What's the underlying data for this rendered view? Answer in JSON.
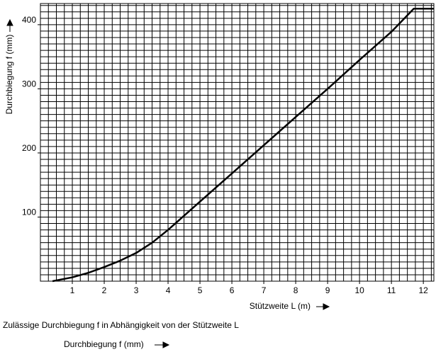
{
  "chart_data": {
    "type": "line",
    "ylabel": "Durchbiegung f (mm)",
    "xlabel": "Stützweite L (m)",
    "caption": "Zulässige Durchbiegung f in Abhängigkeit von der Stützweite L",
    "footer_label": "Durchbiegung f (mm)",
    "x": [
      0.38,
      1,
      1.5,
      2,
      2.5,
      3,
      3.5,
      4,
      5,
      6,
      7,
      8,
      9,
      10,
      11,
      11.7,
      12.33
    ],
    "series": [
      {
        "color": "#000000",
        "values": [
          0,
          6,
          13,
          22,
          32,
          44,
          60,
          80,
          124,
          168,
          212,
          256,
          300,
          345,
          389,
          425,
          425
        ]
      }
    ],
    "xlim": [
      0,
      12.33
    ],
    "ylim": [
      0,
      433
    ],
    "xticks": [
      1,
      2,
      3,
      4,
      5,
      6,
      7,
      8,
      9,
      10,
      11,
      12
    ],
    "yticks": [
      100,
      200,
      300,
      400
    ],
    "grid": true,
    "xgrid": [
      0.25,
      0.5,
      0.75,
      1,
      1.25,
      1.5,
      1.75,
      2,
      2.25,
      2.5,
      2.75,
      3,
      3.25,
      3.5,
      3.75,
      4,
      4.25,
      4.5,
      4.75,
      5,
      5.25,
      5.5,
      5.75,
      6,
      6.25,
      6.5,
      6.75,
      7,
      7.25,
      7.5,
      7.75,
      8,
      8.25,
      8.5,
      8.75,
      9,
      9.25,
      9.5,
      9.75,
      10,
      10.25,
      10.5,
      10.75,
      11,
      11.25,
      11.5,
      11.75,
      12,
      12.25
    ],
    "ygrid": [
      10,
      20,
      30,
      40,
      50,
      60,
      70,
      80,
      90,
      100,
      110,
      120,
      130,
      140,
      150,
      160,
      170,
      180,
      190,
      200,
      210,
      220,
      230,
      240,
      250,
      260,
      270,
      280,
      290,
      300,
      310,
      320,
      330,
      340,
      350,
      360,
      370,
      380,
      390,
      400,
      410,
      420,
      430
    ]
  }
}
